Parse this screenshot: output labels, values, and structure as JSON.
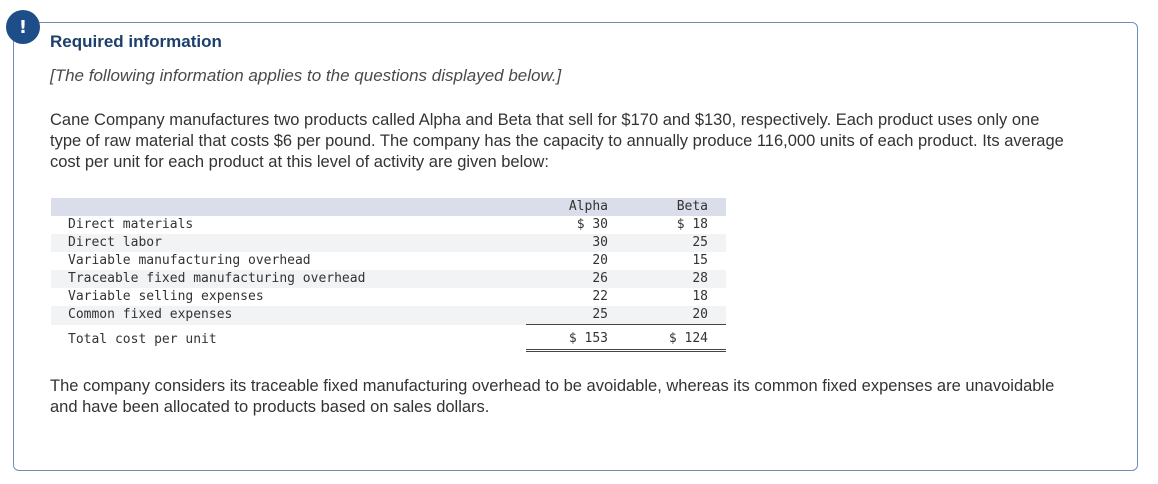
{
  "alert": {
    "symbol": "!"
  },
  "heading": "Required information",
  "subheading": "[The following information applies to the questions displayed below.]",
  "intro": "Cane Company manufactures two products called Alpha and Beta that sell for $170 and $130, respectively. Each product uses only one type of raw material that costs $6 per pound. The company has the capacity to annually produce 116,000 units of each product. Its average cost per unit for each product at this level of activity are given below:",
  "table": {
    "headers": [
      "Alpha",
      "Beta"
    ],
    "rows": [
      {
        "label": "Direct materials",
        "alpha": "$ 30",
        "beta": "$ 18"
      },
      {
        "label": "Direct labor",
        "alpha": "30",
        "beta": "25"
      },
      {
        "label": "Variable manufacturing overhead",
        "alpha": "20",
        "beta": "15"
      },
      {
        "label": "Traceable fixed manufacturing overhead",
        "alpha": "26",
        "beta": "28"
      },
      {
        "label": "Variable selling expenses",
        "alpha": "22",
        "beta": "18"
      },
      {
        "label": "Common fixed expenses",
        "alpha": "25",
        "beta": "20"
      }
    ],
    "total": {
      "label": "Total cost per unit",
      "alpha": "$ 153",
      "beta": "$ 124"
    }
  },
  "outro": "The company considers its traceable fixed manufacturing overhead to be avoidable, whereas its common fixed expenses are unavoidable and have been allocated to products based on sales dollars."
}
